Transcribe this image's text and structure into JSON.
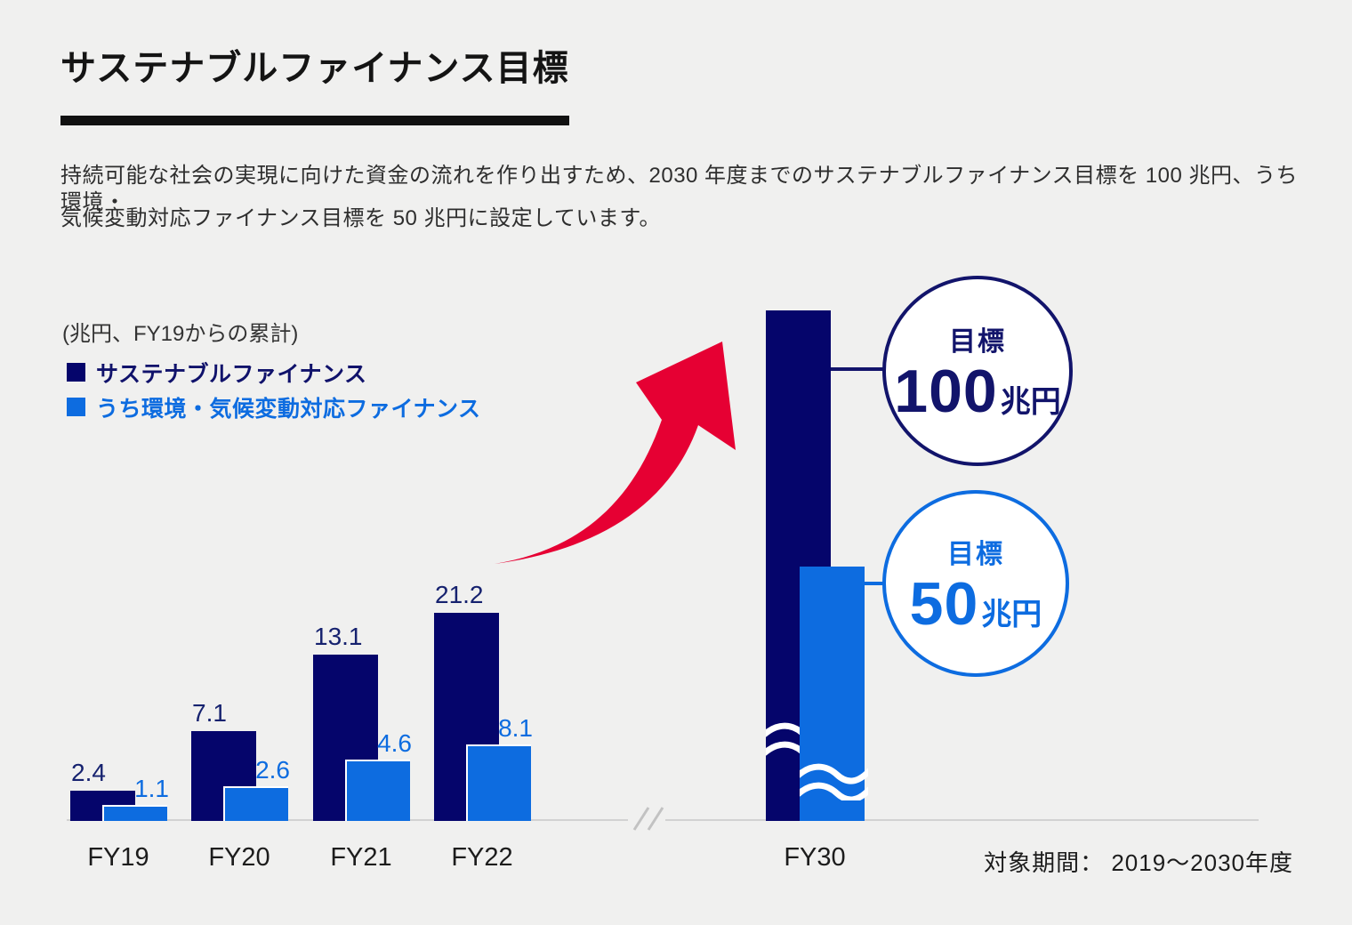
{
  "header": {
    "title": "サステナブルファイナンス目標",
    "description_lines": [
      "持続可能な社会の実現に向けた資金の流れを作り出すため、2030 年度までのサステナブルファイナンス目標を 100 兆円、うち環境・",
      "気候変動対応ファイナンス目標を 50 兆円に設定しています。"
    ]
  },
  "chart_data": {
    "type": "bar",
    "title": "サステナブルファイナンス目標",
    "unit_note": "(兆円、FY19からの累計)",
    "categories": [
      "FY19",
      "FY20",
      "FY21",
      "FY22",
      "FY30"
    ],
    "series": [
      {
        "name": "サステナブルファイナンス",
        "color": "#05056b",
        "values": [
          2.4,
          7.1,
          13.1,
          21.2,
          100
        ],
        "value_labels": [
          "2.4",
          "7.1",
          "13.1",
          "21.2",
          ""
        ],
        "label_color": "#16226f"
      },
      {
        "name": "うち環境・気候変動対応ファイナンス",
        "color": "#0d6ce0",
        "values": [
          1.1,
          2.6,
          4.6,
          8.1,
          50
        ],
        "value_labels": [
          "1.1",
          "2.6",
          "4.6",
          "8.1",
          ""
        ],
        "label_color": "#0d6ce0"
      }
    ],
    "axis_break": {
      "between": [
        "FY22",
        "FY30"
      ]
    },
    "targets": [
      {
        "label": "目標",
        "value": "100",
        "unit": "兆円",
        "applies_to": "サステナブルファイナンス",
        "color": "#12146b"
      },
      {
        "label": "目標",
        "value": "50",
        "unit": "兆円",
        "applies_to": "うち環境・気候変動対応ファイナンス",
        "color": "#0d6ce0"
      }
    ],
    "footnote": "対象期間： 2019～2030年度",
    "ylabel": "",
    "xlabel": "",
    "grid": false,
    "legend_position": "top-left"
  },
  "colors": {
    "background": "#f0f0ef",
    "navy": "#05056b",
    "blue": "#0d6ce0",
    "red_arrow": "#e60033",
    "axis": "#d2d2d2",
    "text": "#2e2e2e"
  }
}
